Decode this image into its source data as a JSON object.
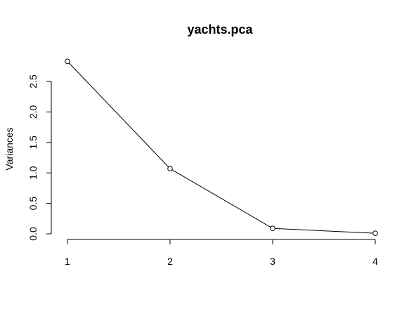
{
  "chart_data": {
    "type": "line",
    "title": "yachts.pca",
    "xlabel": "",
    "ylabel": "Variances",
    "x": [
      1,
      2,
      3,
      4
    ],
    "series": [
      {
        "values": [
          2.83,
          1.07,
          0.09,
          0.01
        ]
      }
    ],
    "xlim": [
      1,
      4
    ],
    "ylim": [
      0,
      2.5
    ],
    "x_ticks": [
      "1",
      "2",
      "3",
      "4"
    ],
    "y_ticks": [
      "0.0",
      "0.5",
      "1.0",
      "1.5",
      "2.0",
      "2.5"
    ],
    "grid": false,
    "markers": "open-circle",
    "line_color": "#000000",
    "background": "#ffffff"
  }
}
